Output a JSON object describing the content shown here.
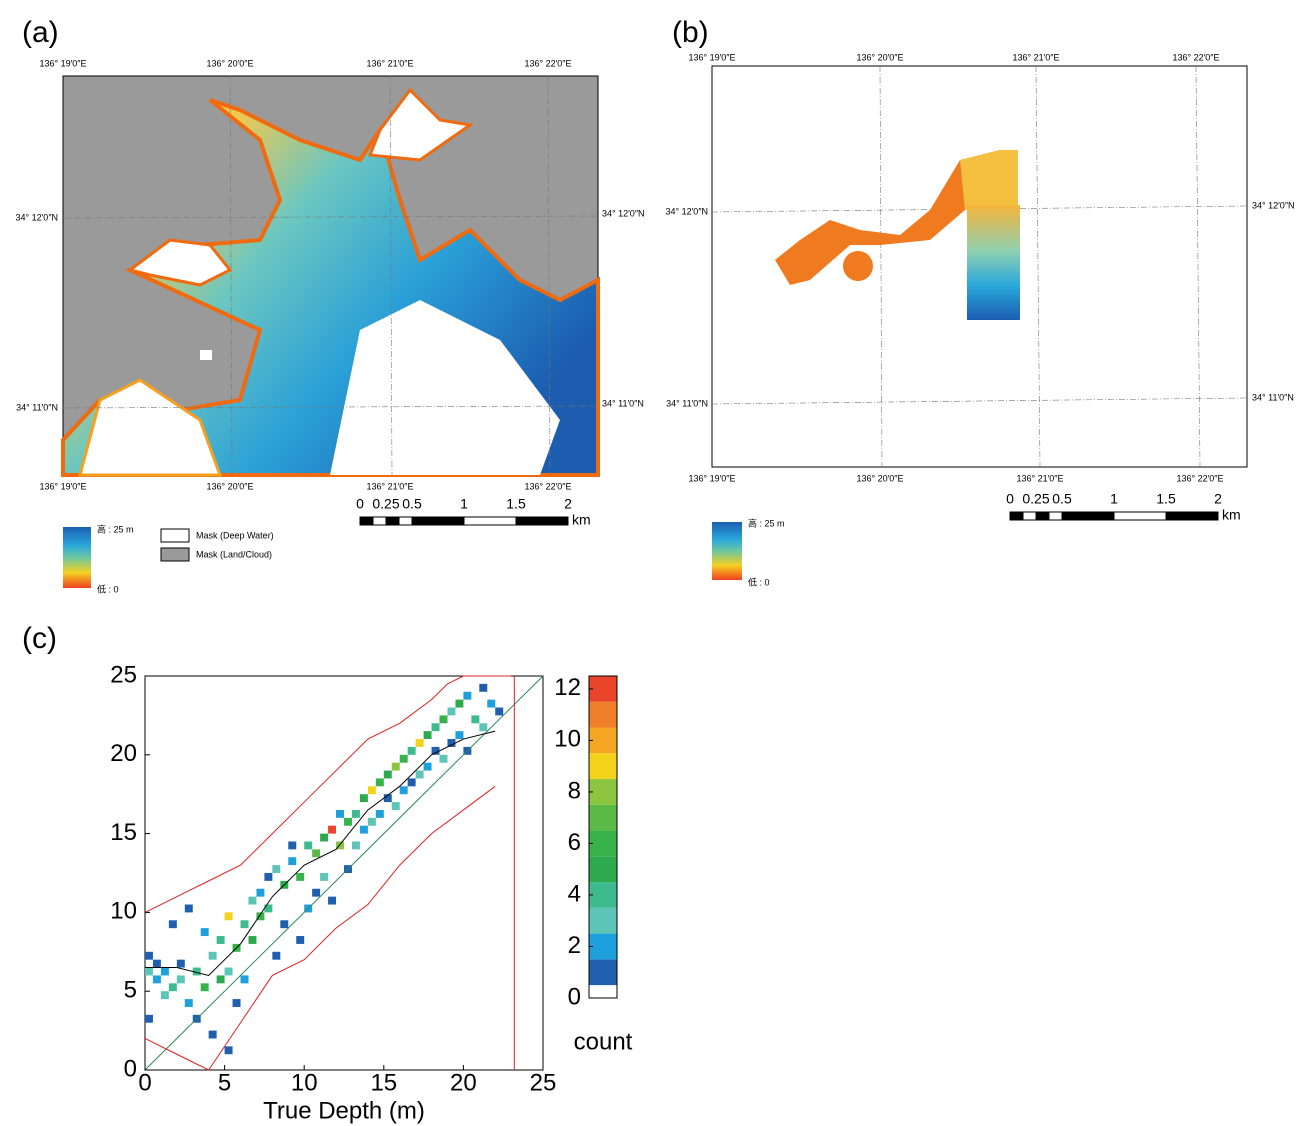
{
  "panels": {
    "a": {
      "label": "(a)",
      "lon_labels": [
        "136°  19′0″E",
        "136°  20′0″E",
        "136°  21′0″E",
        "136°  22′0″E"
      ],
      "lat_labels": [
        "34°  12′0″N",
        "34°  11′0″N"
      ],
      "scale": {
        "ticks": [
          0,
          0.25,
          0.5,
          1,
          1.5,
          2
        ],
        "unit": "km"
      },
      "legend": {
        "high": "高 : 25 m",
        "low": "低 : 0",
        "mask_deep": "Mask (Deep Water)",
        "mask_land": "Mask (Land/Cloud)"
      }
    },
    "b": {
      "label": "(b)",
      "lon_labels": [
        "136°  19′0″E",
        "136°  20′0″E",
        "136°  21′0″E",
        "136°  22′0″E"
      ],
      "lat_labels": [
        "34°  12′0″N",
        "34°  11′0″N"
      ],
      "scale": {
        "ticks": [
          0,
          0.25,
          0.5,
          1,
          1.5,
          2
        ],
        "unit": "km"
      },
      "legend": {
        "high": "高 : 25 m",
        "low": "低 : 0"
      }
    },
    "c": {
      "label": "(c)"
    }
  },
  "chart_data": {
    "type": "heatmap",
    "xlabel": "True Depth (m)",
    "xlim": [
      0,
      25
    ],
    "ylim": [
      0,
      25
    ],
    "xticks": [
      0,
      5,
      10,
      15,
      20,
      25
    ],
    "yticks": [
      0,
      5,
      10,
      15,
      20,
      25
    ],
    "bin_width": 0.5,
    "cells": [
      [
        0,
        7,
        1
      ],
      [
        0,
        6,
        3
      ],
      [
        0,
        3,
        1
      ],
      [
        0.5,
        5.5,
        2
      ],
      [
        0.5,
        6.5,
        1
      ],
      [
        1,
        4.5,
        3
      ],
      [
        1,
        6,
        2
      ],
      [
        1.5,
        5,
        4
      ],
      [
        1.5,
        9,
        1
      ],
      [
        2,
        6.5,
        1
      ],
      [
        2,
        5.5,
        3
      ],
      [
        2.5,
        10,
        1
      ],
      [
        2.5,
        4,
        2
      ],
      [
        3,
        6,
        4
      ],
      [
        3,
        3,
        1
      ],
      [
        3.5,
        5,
        6
      ],
      [
        3.5,
        8.5,
        2
      ],
      [
        4,
        7,
        3
      ],
      [
        4,
        2,
        1
      ],
      [
        4.5,
        5.5,
        5
      ],
      [
        4.5,
        8,
        4
      ],
      [
        5,
        6,
        3
      ],
      [
        5,
        1,
        1
      ],
      [
        5,
        9.5,
        9
      ],
      [
        5.5,
        7.5,
        6
      ],
      [
        5.5,
        4,
        1
      ],
      [
        6,
        9,
        4
      ],
      [
        6,
        5.5,
        2
      ],
      [
        6.5,
        10.5,
        3
      ],
      [
        6.5,
        8,
        5
      ],
      [
        7,
        11,
        2
      ],
      [
        7,
        9.5,
        6
      ],
      [
        7.5,
        12,
        1
      ],
      [
        7.5,
        10,
        4
      ],
      [
        8,
        12.5,
        3
      ],
      [
        8,
        7,
        1
      ],
      [
        8.5,
        11.5,
        5
      ],
      [
        8.5,
        9,
        1
      ],
      [
        9,
        13,
        2
      ],
      [
        9,
        14,
        1
      ],
      [
        9.5,
        12,
        6
      ],
      [
        9.5,
        8,
        1
      ],
      [
        10,
        14,
        4
      ],
      [
        10,
        10,
        2
      ],
      [
        10.5,
        13.5,
        7
      ],
      [
        10.5,
        11,
        1
      ],
      [
        11,
        14.5,
        5
      ],
      [
        11,
        12,
        3
      ],
      [
        11.5,
        15,
        12
      ],
      [
        11.5,
        10.5,
        1
      ],
      [
        12,
        14,
        8
      ],
      [
        12,
        16,
        2
      ],
      [
        12.5,
        15.5,
        6
      ],
      [
        12.5,
        12.5,
        1
      ],
      [
        13,
        16,
        4
      ],
      [
        13,
        14,
        3
      ],
      [
        13.5,
        17,
        5
      ],
      [
        13.5,
        15,
        2
      ],
      [
        14,
        17.5,
        9
      ],
      [
        14,
        15.5,
        3
      ],
      [
        14.5,
        18,
        6
      ],
      [
        14.5,
        16,
        2
      ],
      [
        15,
        18.5,
        5
      ],
      [
        15,
        17,
        1
      ],
      [
        15.5,
        19,
        8
      ],
      [
        15.5,
        16.5,
        3
      ],
      [
        16,
        19.5,
        6
      ],
      [
        16,
        17.5,
        2
      ],
      [
        16.5,
        20,
        4
      ],
      [
        16.5,
        18,
        1
      ],
      [
        17,
        20.5,
        9
      ],
      [
        17,
        18.5,
        3
      ],
      [
        17.5,
        21,
        5
      ],
      [
        17.5,
        19,
        2
      ],
      [
        18,
        21.5,
        4
      ],
      [
        18,
        20,
        1
      ],
      [
        18.5,
        22,
        6
      ],
      [
        18.5,
        19.5,
        3
      ],
      [
        19,
        22.5,
        3
      ],
      [
        19,
        20.5,
        1
      ],
      [
        19.5,
        23,
        5
      ],
      [
        19.5,
        21,
        2
      ],
      [
        20,
        23.5,
        2
      ],
      [
        20,
        20,
        1
      ],
      [
        20.5,
        22,
        4
      ],
      [
        21,
        24,
        1
      ],
      [
        21,
        21.5,
        3
      ],
      [
        21.5,
        23,
        2
      ],
      [
        22,
        22.5,
        1
      ]
    ],
    "lines": [
      {
        "color": "#2a8a5a",
        "x": [
          0,
          25
        ],
        "y": [
          0,
          25
        ]
      },
      {
        "color": "#000000",
        "x": [
          0,
          2,
          4,
          6,
          8,
          10,
          12,
          14,
          16,
          18,
          20,
          22
        ],
        "y": [
          6.5,
          6.5,
          6,
          8,
          11,
          13,
          14,
          16.5,
          18,
          20,
          21,
          21.5
        ]
      },
      {
        "color": "#e02020",
        "x": [
          0,
          2,
          4,
          6,
          8,
          10,
          12,
          14,
          16,
          18,
          19,
          20,
          22,
          23
        ],
        "y": [
          10,
          11,
          12,
          13,
          15,
          17,
          19,
          21,
          22,
          23.5,
          24.5,
          25,
          25,
          25
        ]
      },
      {
        "color": "#e02020",
        "x": [
          0,
          2,
          4,
          6,
          8,
          10,
          12,
          14,
          16,
          18,
          20,
          22
        ],
        "y": [
          2,
          1,
          0,
          3,
          6,
          7,
          9,
          10.5,
          13,
          15,
          16.5,
          18
        ]
      },
      {
        "color": "#e02020",
        "x": [
          23.2,
          23.2
        ],
        "y": [
          0,
          25
        ]
      }
    ],
    "colorbar": {
      "label": "count",
      "lim": [
        0,
        12.5
      ],
      "ticks": [
        0,
        2,
        4,
        6,
        8,
        10,
        12
      ],
      "colors": [
        "#ffffff",
        "#1f5fae",
        "#1ea0dc",
        "#5cc5b8",
        "#3dbb8f",
        "#2eaa4e",
        "#38b24a",
        "#5bb947",
        "#8cc540",
        "#f2d21b",
        "#f5a623",
        "#f07f2a",
        "#e8452a"
      ]
    }
  }
}
